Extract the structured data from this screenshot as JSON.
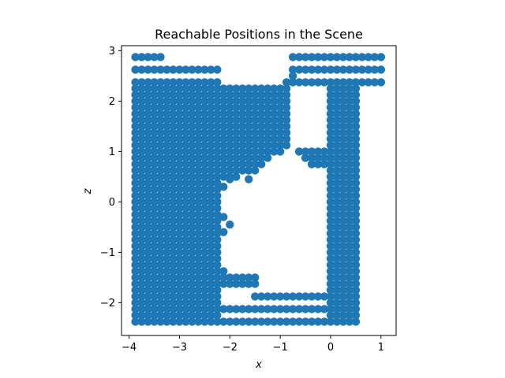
{
  "chart_data": {
    "type": "scatter",
    "title": "Reachable Positions in the Scene",
    "xlabel": "x",
    "ylabel": "z",
    "xlim": [
      -4.15,
      1.3
    ],
    "ylim": [
      -2.65,
      3.1
    ],
    "x_ticks": [
      -4,
      -3,
      -2,
      -1,
      0,
      1
    ],
    "y_ticks": [
      -2,
      -1,
      0,
      1,
      2,
      3
    ],
    "x_tick_labels": [
      "−4",
      "−3",
      "−2",
      "−1",
      "0",
      "1"
    ],
    "y_tick_labels": [
      "−2",
      "−1",
      "0",
      "1",
      "2",
      "3"
    ],
    "grid": false,
    "point_color": "#1f77b4",
    "grid_step": 0.125,
    "left_block": {
      "x_min": -3.875,
      "x_max": -2.25,
      "z_min": -2.375,
      "z_max": 2.375
    },
    "left_block_top_row": {
      "z": 2.625,
      "x_min": -3.875,
      "x_max": -2.25
    },
    "left_block_top_row2": {
      "z": 2.875,
      "x_min": -3.875,
      "x_max": -3.375
    },
    "upper_middle_block": {
      "x_min": -2.125,
      "x_max": -0.875,
      "z_min": 1.125,
      "z_max": 2.25
    },
    "right_column": {
      "x_min": 0.0,
      "x_max": 0.5,
      "z_min": -2.375,
      "z_max": 2.375
    },
    "top_right_rows": [
      {
        "z": 2.875,
        "x_min": -0.75,
        "x_max": 1.0
      },
      {
        "z": 2.625,
        "x_min": -0.75,
        "x_max": 1.0
      },
      {
        "z": 2.375,
        "x_min": -0.875,
        "x_max": 1.0
      }
    ],
    "bottom_rows": [
      {
        "z": -2.375,
        "x_min": -2.125,
        "x_max": -0.125
      },
      {
        "z": -2.125,
        "x_min": -2.125,
        "x_max": -0.125
      },
      {
        "z": -1.875,
        "x_min": -1.5,
        "x_max": -0.125
      },
      {
        "z": -1.625,
        "x_min": -2.125,
        "x_max": -1.5
      },
      {
        "z": -1.5,
        "x_min": -2.125,
        "x_max": -1.5
      }
    ],
    "arch_rows": [
      {
        "z": 1.0,
        "x_min": -2.125,
        "x_max": -1.0
      },
      {
        "z": 1.0,
        "x_min": -0.625,
        "x_max": -0.125
      },
      {
        "z": 0.875,
        "x_min": -2.125,
        "x_max": -1.25
      },
      {
        "z": 0.875,
        "x_min": -0.5,
        "x_max": -0.125
      },
      {
        "z": 0.75,
        "x_min": -2.125,
        "x_max": -1.375
      },
      {
        "z": 0.75,
        "x_min": -0.375,
        "x_max": -0.125
      },
      {
        "z": 0.625,
        "x_min": -2.125,
        "x_max": -1.5
      },
      {
        "z": 0.5,
        "x_min": -2.125,
        "x_max": -1.875
      }
    ],
    "extra_points": [
      [
        -1.625,
        0.45
      ],
      [
        -2.0,
        0.45
      ],
      [
        -2.125,
        0.3
      ],
      [
        -2.125,
        -0.3
      ],
      [
        -2.0,
        -0.45
      ],
      [
        -2.125,
        -0.6
      ],
      [
        -2.125,
        -1.375
      ],
      [
        -0.625,
        2.375
      ],
      [
        -0.75,
        2.5
      ]
    ]
  }
}
